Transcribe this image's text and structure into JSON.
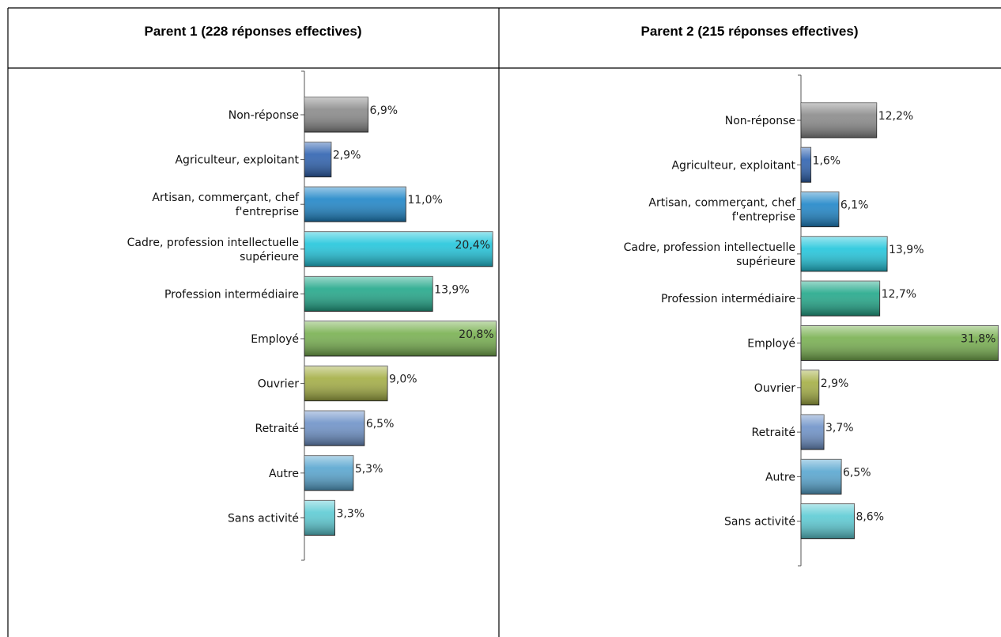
{
  "chart_data": [
    {
      "type": "bar",
      "title": "Parent 1 (228 réponses effectives)",
      "categories": [
        "Non-réponse",
        "Agriculteur, exploitant",
        "Artisan, commerçant, chef f'entreprise",
        "Cadre, profession intellectuelle supérieure",
        "Profession intermédiaire",
        "Employé",
        "Ouvrier",
        "Retraité",
        "Autre",
        "Sans activité"
      ],
      "values": [
        6.9,
        2.9,
        11.0,
        20.4,
        13.9,
        20.8,
        9.0,
        6.5,
        5.3,
        3.3
      ],
      "value_labels": [
        "6,9%",
        "2,9%",
        "11,0%",
        "20,4%",
        "13,9%",
        "20,8%",
        "9,0%",
        "6,5%",
        "5,3%",
        "3,3%"
      ],
      "colors": [
        "#8a8a8a",
        "#2e62b0",
        "#1f86c8",
        "#22c6dc",
        "#22a88a",
        "#78b050",
        "#a4ae44",
        "#6e92c8",
        "#58a6d0",
        "#5ccbd4"
      ],
      "xlim": [
        0,
        21
      ]
    },
    {
      "type": "bar",
      "title": "Parent 2 (215 réponses effectives)",
      "categories": [
        "Non-réponse",
        "Agriculteur, exploitant",
        "Artisan, commerçant, chef f'entreprise",
        "Cadre, profession intellectuelle supérieure",
        "Profession intermédiaire",
        "Employé",
        "Ouvrier",
        "Retraité",
        "Autre",
        "Sans activité"
      ],
      "values": [
        12.2,
        1.6,
        6.1,
        13.9,
        12.7,
        31.8,
        2.9,
        3.7,
        6.5,
        8.6
      ],
      "value_labels": [
        "12,2%",
        "1,6%",
        "6,1%",
        "13,9%",
        "12,7%",
        "31,8%",
        "2,9%",
        "3,7%",
        "6,5%",
        "8,6%"
      ],
      "colors": [
        "#8a8a8a",
        "#2e62b0",
        "#1f86c8",
        "#22c6dc",
        "#22a88a",
        "#78b050",
        "#a4ae44",
        "#6e92c8",
        "#58a6d0",
        "#5ccbd4"
      ],
      "xlim": [
        0,
        32
      ]
    }
  ]
}
